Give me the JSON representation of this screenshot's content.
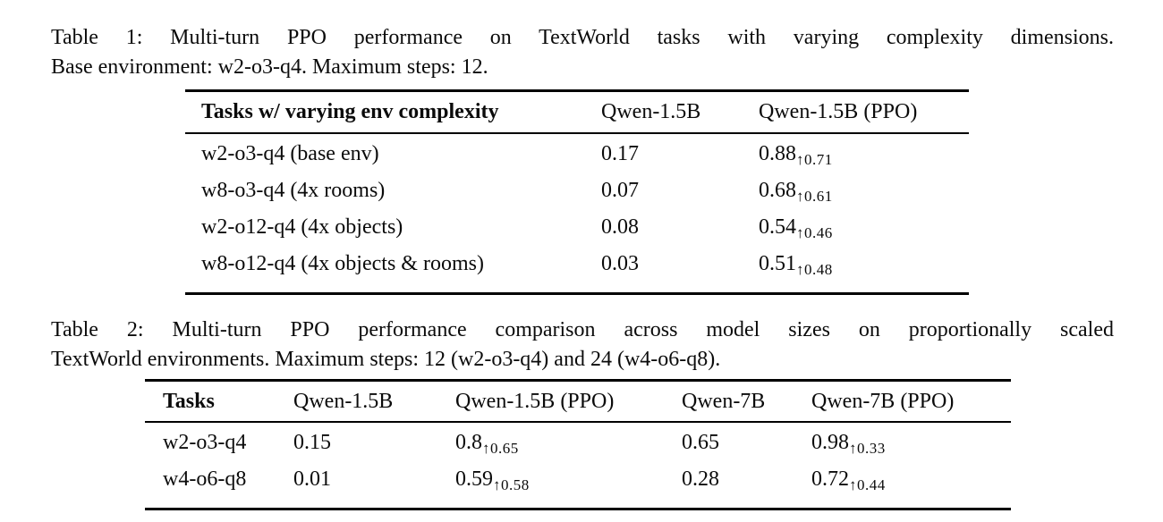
{
  "caption1": {
    "lines": [
      "Table 1: Multi-turn PPO performance on TextWorld tasks with varying complexity dimensions.",
      "Base environment: w2-o3-q4. Maximum steps: 12."
    ]
  },
  "table1": {
    "headers": [
      "Tasks w/ varying env complexity",
      "Qwen-1.5B",
      "Qwen-1.5B (PPO)"
    ],
    "rows": [
      {
        "task": "w2-o3-q4 (base env)",
        "base": "0.17",
        "ppo_value": "0.88",
        "ppo_gain": "↑0.71"
      },
      {
        "task": "w8-o3-q4 (4x rooms)",
        "base": "0.07",
        "ppo_value": "0.68",
        "ppo_gain": "↑0.61"
      },
      {
        "task": "w2-o12-q4 (4x objects)",
        "base": "0.08",
        "ppo_value": "0.54",
        "ppo_gain": "↑0.46"
      },
      {
        "task": "w8-o12-q4 (4x objects & rooms)",
        "base": "0.03",
        "ppo_value": "0.51",
        "ppo_gain": "↑0.48"
      }
    ]
  },
  "caption2": {
    "lines": [
      "Table 2: Multi-turn PPO performance comparison across model sizes on proportionally scaled",
      "TextWorld environments. Maximum steps: 12 (w2-o3-q4) and 24 (w4-o6-q8)."
    ]
  },
  "table2": {
    "headers": [
      "Tasks",
      "Qwen-1.5B",
      "Qwen-1.5B (PPO)",
      "Qwen-7B",
      "Qwen-7B (PPO)"
    ],
    "rows": [
      {
        "task": "w2-o3-q4",
        "qwen15b": "0.15",
        "qwen15b_ppo_value": "0.8",
        "qwen15b_ppo_gain": "↑0.65",
        "qwen7b": "0.65",
        "qwen7b_ppo_value": "0.98",
        "qwen7b_ppo_gain": "↑0.33"
      },
      {
        "task": "w4-o6-q8",
        "qwen15b": "0.01",
        "qwen15b_ppo_value": "0.59",
        "qwen15b_ppo_gain": "↑0.58",
        "qwen7b": "0.28",
        "qwen7b_ppo_value": "0.72",
        "qwen7b_ppo_gain": "↑0.44"
      }
    ]
  }
}
